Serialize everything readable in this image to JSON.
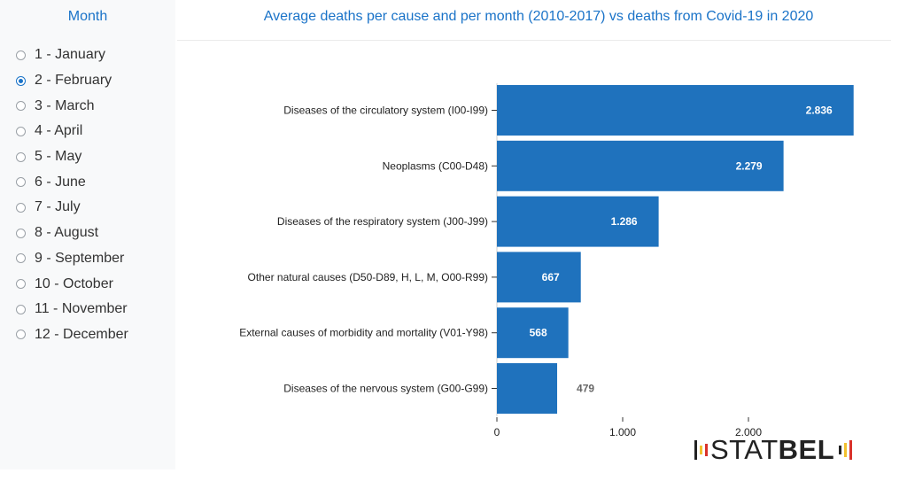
{
  "sidebar": {
    "title": "Month",
    "selected_index": 1,
    "months": [
      "1 - January",
      "2 - February",
      "3 - March",
      "4 - April",
      "5 - May",
      "6 - June",
      "7 - July",
      "8 - August",
      "9 - September",
      "10 - October",
      "11 - November",
      "12 - December"
    ]
  },
  "chart_data": {
    "type": "bar",
    "orientation": "horizontal",
    "title": "Average deaths per cause and per month (2010-2017) vs deaths from Covid-19 in 2020",
    "categories": [
      "Diseases of the circulatory system (I00-I99)",
      "Neoplasms (C00-D48)",
      "Diseases of the respiratory system (J00-J99)",
      "Other natural causes (D50-D89, H, L, M, O00-R99)",
      "External causes of morbidity and mortality (V01-Y98)",
      "Diseases of the nervous system (G00-G99)"
    ],
    "values": [
      2836,
      2279,
      1286,
      667,
      568,
      479
    ],
    "value_labels": [
      "2.836",
      "2.279",
      "1.286",
      "667",
      "568",
      "479"
    ],
    "xticks": [
      0,
      1000,
      2000
    ],
    "xtick_labels": [
      "0",
      "1.000",
      "2.000"
    ],
    "xlim": [
      0,
      2900
    ],
    "bar_color": "#1f72bd",
    "grid": false
  },
  "logo": {
    "text_light": "STAT",
    "text_bold": "BEL"
  }
}
